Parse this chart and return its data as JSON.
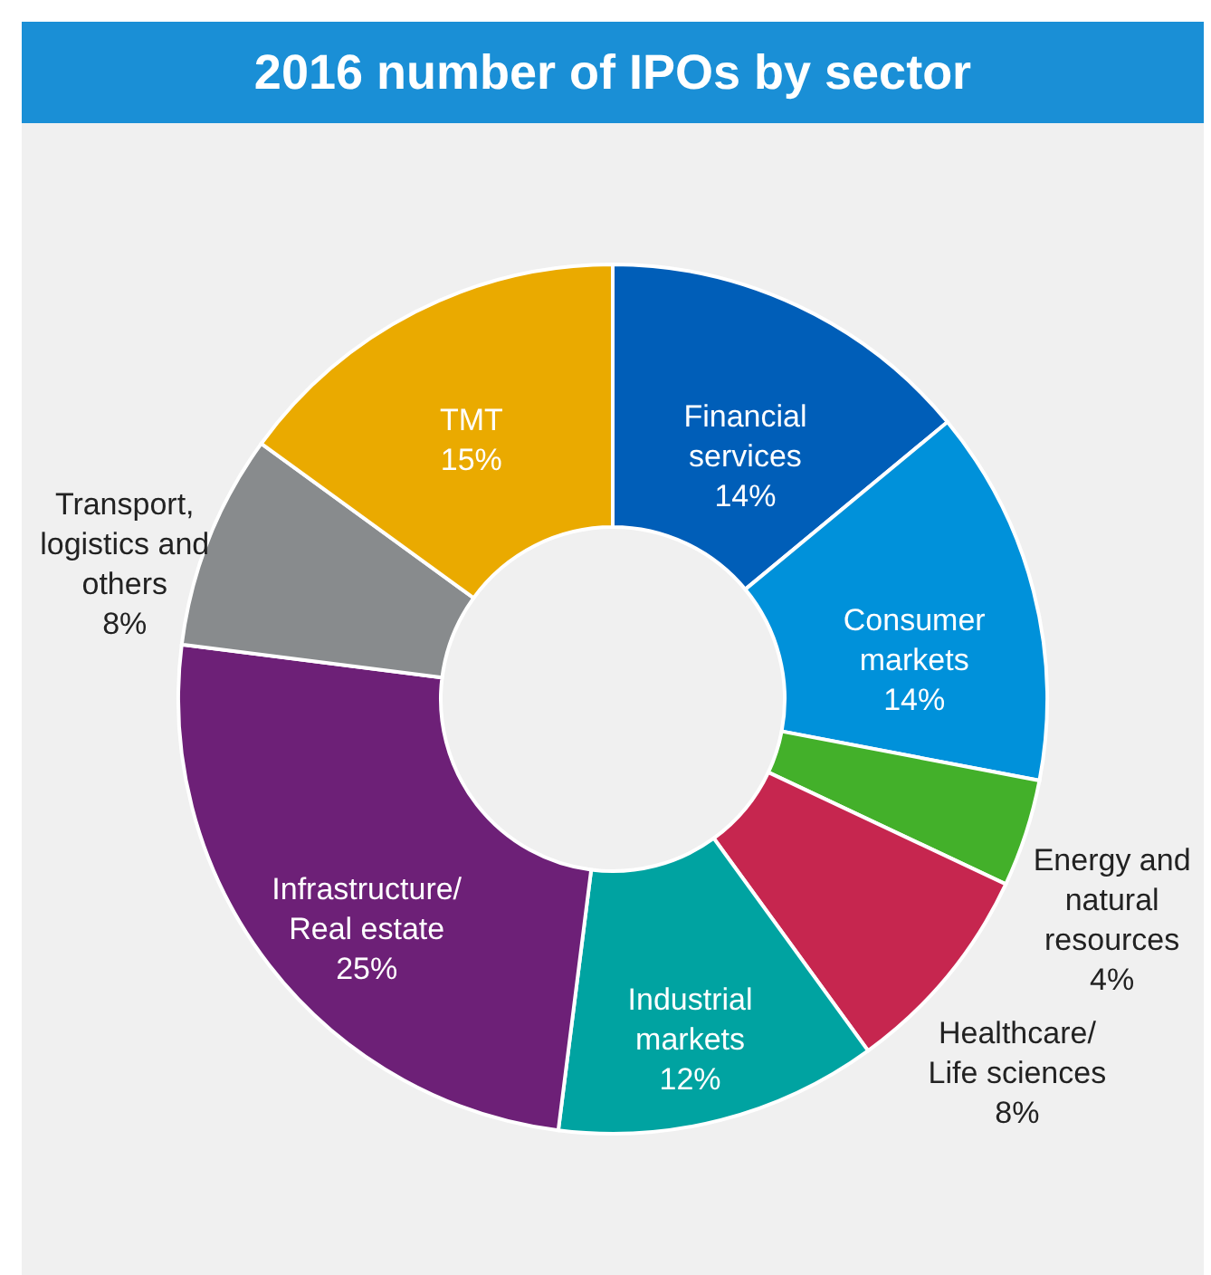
{
  "chart_data": {
    "type": "donut",
    "title": "2016 number of IPOs by sector",
    "categories": [
      "Financial services",
      "Consumer markets",
      "Energy and natural resources",
      "Healthcare/Life sciences",
      "Industrial markets",
      "Infrastructure/Real estate",
      "Transport, logistics and others",
      "TMT"
    ],
    "values": [
      14,
      14,
      4,
      8,
      12,
      25,
      8,
      15
    ],
    "value_labels": [
      "14%",
      "14%",
      "4%",
      "8%",
      "12%",
      "25%",
      "8%",
      "15%"
    ],
    "colors": [
      "#005eb8",
      "#0091da",
      "#43b02a",
      "#c6264f",
      "#00a3a1",
      "#6d2077",
      "#888b8d",
      "#eaaa00"
    ]
  }
}
